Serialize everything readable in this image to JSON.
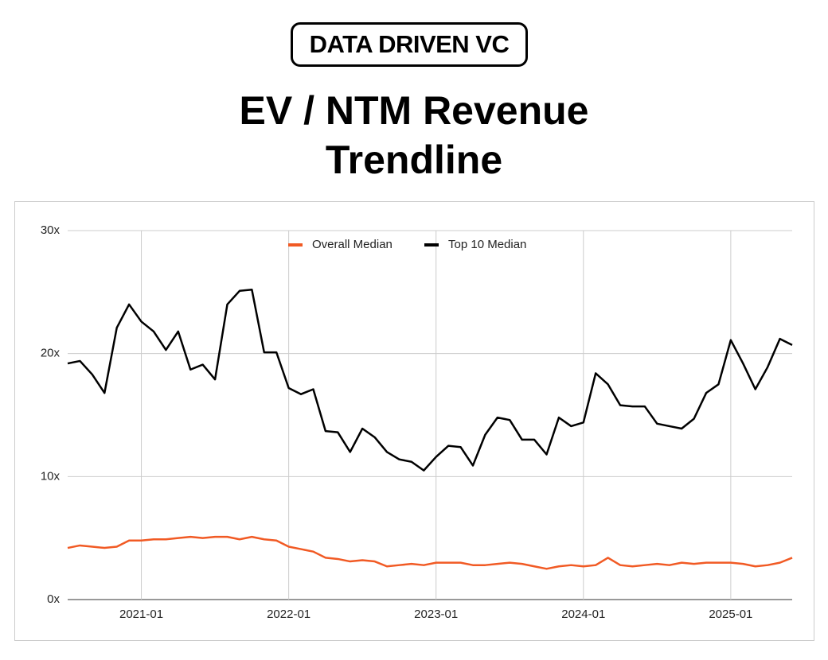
{
  "brand": "DATA DRIVEN VC",
  "chart_data": {
    "type": "line",
    "title": "EV / NTM Revenue Trendline",
    "x": [
      "2020-07",
      "2020-08",
      "2020-09",
      "2020-10",
      "2020-11",
      "2020-12",
      "2021-01",
      "2021-02",
      "2021-03",
      "2021-04",
      "2021-05",
      "2021-06",
      "2021-07",
      "2021-08",
      "2021-09",
      "2021-10",
      "2021-11",
      "2021-12",
      "2022-01",
      "2022-02",
      "2022-03",
      "2022-04",
      "2022-05",
      "2022-06",
      "2022-07",
      "2022-08",
      "2022-09",
      "2022-10",
      "2022-11",
      "2022-12",
      "2023-01",
      "2023-02",
      "2023-03",
      "2023-04",
      "2023-05",
      "2023-06",
      "2023-07",
      "2023-08",
      "2023-09",
      "2023-10",
      "2023-11",
      "2023-12",
      "2024-01",
      "2024-02",
      "2024-03",
      "2024-04",
      "2024-05",
      "2024-06",
      "2024-07",
      "2024-08",
      "2024-09",
      "2024-10",
      "2024-11",
      "2024-12",
      "2025-01",
      "2025-02",
      "2025-03",
      "2025-04",
      "2025-05",
      "2025-06"
    ],
    "series": [
      {
        "name": "Overall Median",
        "color": "#f15a24",
        "values": [
          4.2,
          4.4,
          4.3,
          4.2,
          4.3,
          4.8,
          4.8,
          4.9,
          4.9,
          5.0,
          5.1,
          5.0,
          5.1,
          5.1,
          4.9,
          5.1,
          4.9,
          4.8,
          4.3,
          4.1,
          3.9,
          3.4,
          3.3,
          3.1,
          3.2,
          3.1,
          2.7,
          2.8,
          2.9,
          2.8,
          3.0,
          3.0,
          3.0,
          2.8,
          2.8,
          2.9,
          3.0,
          2.9,
          2.7,
          2.5,
          2.7,
          2.8,
          2.7,
          2.8,
          3.4,
          2.8,
          2.7,
          2.8,
          2.9,
          2.8,
          3.0,
          2.9,
          3.0,
          3.0,
          3.0,
          2.9,
          2.7,
          2.8,
          3.0,
          3.4
        ]
      },
      {
        "name": "Top 10 Median",
        "color": "#000000",
        "values": [
          19.2,
          19.4,
          18.3,
          16.8,
          22.1,
          24.0,
          22.6,
          21.8,
          20.3,
          21.8,
          18.7,
          19.1,
          17.9,
          24.0,
          25.1,
          25.2,
          20.1,
          20.1,
          17.2,
          16.7,
          17.1,
          13.7,
          13.6,
          12.0,
          13.9,
          13.2,
          12.0,
          11.4,
          11.2,
          10.5,
          11.6,
          12.5,
          12.4,
          10.9,
          13.4,
          14.8,
          14.6,
          13.0,
          13.0,
          11.8,
          14.8,
          14.1,
          14.4,
          18.4,
          17.5,
          15.8,
          15.7,
          15.7,
          14.3,
          14.1,
          13.9,
          14.7,
          16.8,
          17.5,
          21.1,
          19.2,
          17.1,
          18.9,
          21.2,
          20.7
        ]
      }
    ],
    "xlim": [
      "2020-07",
      "2025-06"
    ],
    "xticks": [
      "2021-01",
      "2022-01",
      "2023-01",
      "2024-01",
      "2025-01"
    ],
    "ylim": [
      0,
      30
    ],
    "yticks": [
      {
        "value": 0,
        "label": "0x"
      },
      {
        "value": 10,
        "label": "10x"
      },
      {
        "value": 20,
        "label": "20x"
      },
      {
        "value": 30,
        "label": "30x"
      }
    ],
    "grid": true,
    "legend": "top"
  }
}
